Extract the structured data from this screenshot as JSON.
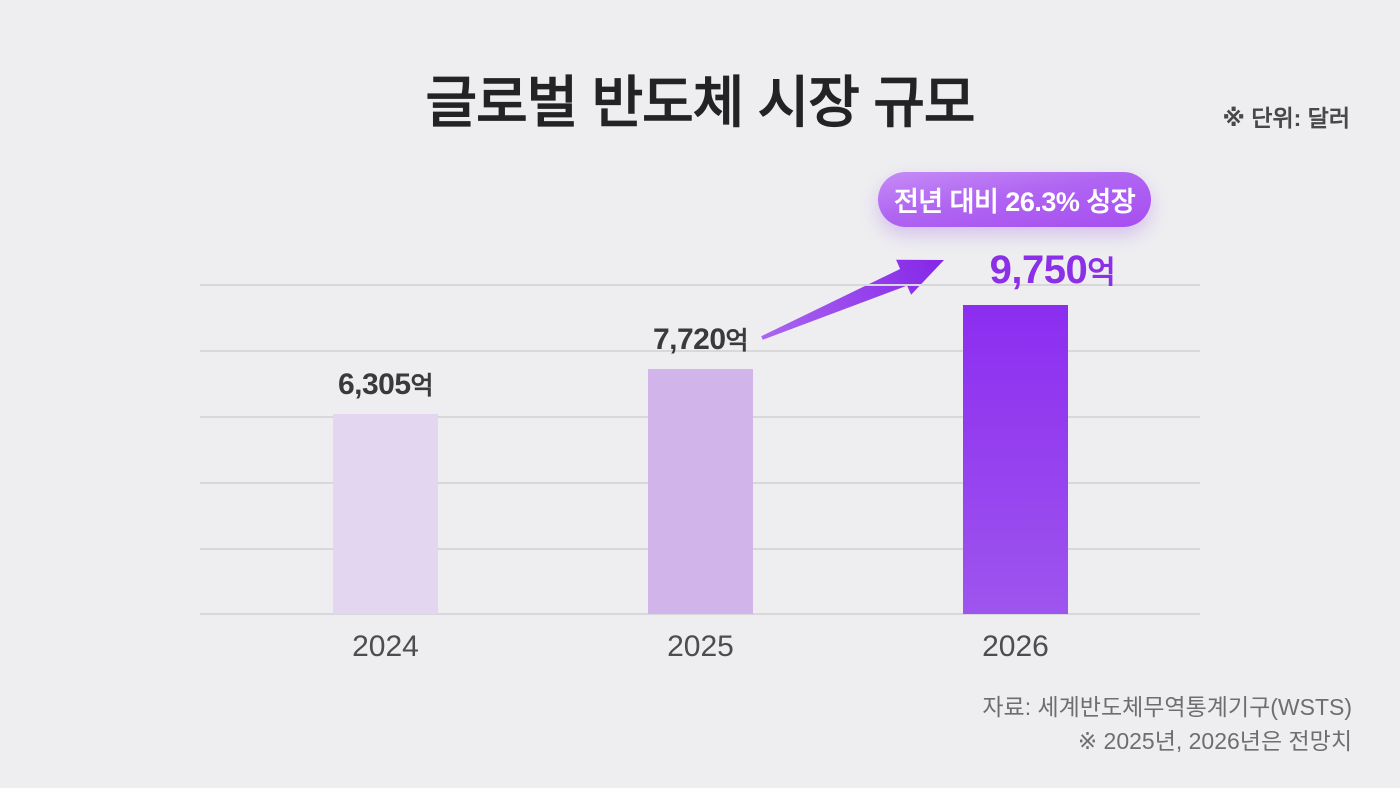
{
  "title": "글로벌 반도체 시장 규모",
  "unit_note": "※ 단위: 달러",
  "badge_label": "전년 대비 26.3% 성장",
  "source_line1": "자료: 세계반도체무역통계기구(WSTS)",
  "source_line2": "※ 2025년, 2026년은 전망치",
  "colors": {
    "background": "#eeeef0",
    "bar_2024": "#e3d6f0",
    "bar_2025": "#d1b4ea",
    "bar_2026_top": "#8c2df0",
    "bar_2026_bottom": "#9e55ee",
    "accent_purple": "#8b30e8",
    "badge_gradient_start": "#c68cf6",
    "badge_gradient_end": "#a64ef0",
    "gridline": "#d8d8da",
    "title_text": "#232325",
    "label_text": "#3a3a3c"
  },
  "chart_data": {
    "type": "bar",
    "title": "글로벌 반도체 시장 규모",
    "unit": "억 달러",
    "categories": [
      "2024",
      "2025",
      "2026"
    ],
    "values": [
      6305,
      7720,
      9750
    ],
    "value_labels": [
      "6,305",
      "7,720",
      "9,750"
    ],
    "value_suffix": "억",
    "annotations": [
      "전년 대비 26.3% 성장"
    ],
    "ylim": [
      0,
      10400
    ],
    "grid": true,
    "gridline_count": 6,
    "legend": false,
    "highlighted_category": "2026"
  }
}
